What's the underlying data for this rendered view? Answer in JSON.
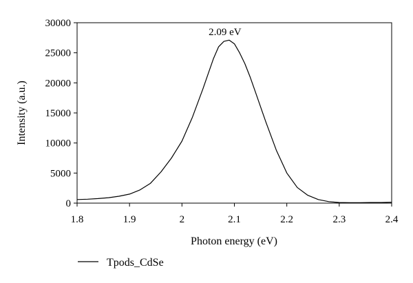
{
  "chart_data": {
    "type": "line",
    "xlabel": "Photon energy (eV)",
    "ylabel": "Intensity (a.u.)",
    "xlim": [
      1.8,
      2.4
    ],
    "ylim": [
      0,
      30000
    ],
    "x_ticks": [
      1.8,
      1.9,
      2.0,
      2.1,
      2.2,
      2.3,
      2.4
    ],
    "x_tick_labels": [
      "1.8",
      "1.9",
      "2",
      "2.1",
      "2.2",
      "2.3",
      "2.4"
    ],
    "y_ticks": [
      0,
      5000,
      10000,
      15000,
      20000,
      25000,
      30000
    ],
    "y_tick_labels": [
      "0",
      "5000",
      "10000",
      "15000",
      "20000",
      "25000",
      "30000"
    ],
    "grid": false,
    "legend_position": "bottom-left",
    "annotations": [
      {
        "text": "2.09 eV",
        "x": 2.09,
        "y": 27000
      }
    ],
    "series": [
      {
        "name": "Tpods_CdSe",
        "color": "#000000",
        "x": [
          1.8,
          1.82,
          1.84,
          1.86,
          1.88,
          1.9,
          1.92,
          1.94,
          1.96,
          1.98,
          2.0,
          2.02,
          2.04,
          2.05,
          2.06,
          2.07,
          2.08,
          2.09,
          2.1,
          2.11,
          2.12,
          2.13,
          2.14,
          2.16,
          2.18,
          2.2,
          2.22,
          2.24,
          2.26,
          2.28,
          2.3,
          2.32,
          2.34,
          2.36,
          2.38,
          2.4
        ],
        "y": [
          600,
          650,
          750,
          900,
          1150,
          1500,
          2200,
          3300,
          5200,
          7500,
          10300,
          14300,
          19000,
          21500,
          24000,
          26000,
          26900,
          27100,
          26500,
          25000,
          23200,
          21000,
          18500,
          13500,
          8800,
          5000,
          2600,
          1300,
          600,
          250,
          100,
          80,
          80,
          100,
          100,
          150
        ]
      }
    ]
  }
}
